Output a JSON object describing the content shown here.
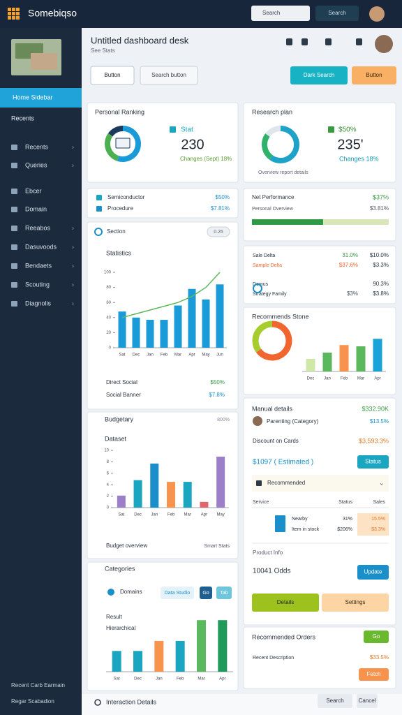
{
  "app": {
    "name": "Somebiqso",
    "search_placeholder": "Search",
    "search_button": "Search"
  },
  "sidebar": {
    "active": "Home Sidebar",
    "section": "Recents",
    "items": [
      "Recents",
      "Queries",
      "Ebcer",
      "Domain",
      "Reeabos",
      "Dasuvoods",
      "Bendaets",
      "Scouting",
      "Diagnolis"
    ],
    "footer": [
      "Recent Carb Earmain",
      "Regar Scabadion"
    ]
  },
  "header": {
    "title": "Untitled dashboard desk",
    "subtitle": "See Stats"
  },
  "toolbar": {
    "buttons": [
      "Button",
      "Search button",
      "Dark Search",
      "Button"
    ]
  },
  "ranking_card": {
    "title": "Personal Ranking",
    "stat_label": "Stat",
    "stat": "230",
    "change": "Changes (Sept) 18%",
    "donut": {
      "type": "pie",
      "values": [
        55,
        30,
        15
      ],
      "colors": [
        "#1a9bd7",
        "#4caf50",
        "#1b3a5c"
      ]
    }
  },
  "research_card": {
    "title": "Research plan",
    "stat_label": "$50%",
    "stat": "235'",
    "change": "Changes 18%",
    "footer": "Overview report details",
    "donut": {
      "type": "pie",
      "values": [
        60,
        25,
        15
      ],
      "colors": [
        "#1fa2c8",
        "#2fb36a",
        "#dfe6ec"
      ]
    }
  },
  "legend_card": {
    "rows": [
      [
        "Semiconductor",
        "$50%"
      ],
      [
        "Procedure",
        "$7.81%"
      ]
    ]
  },
  "section_row": {
    "label": "Section",
    "pill": "0.26"
  },
  "statistics": {
    "title": "Statistics",
    "chart": {
      "type": "bar",
      "categories": [
        "Sat",
        "Dec",
        "Jan",
        "Feb",
        "Mar",
        "Apr",
        "May",
        "Jun"
      ],
      "series": [
        {
          "name": "Bars",
          "color": "#1a9bd7",
          "values": [
            48,
            40,
            37,
            37,
            56,
            78,
            64,
            84
          ]
        },
        {
          "name": "Trend",
          "color": "#5cb85c",
          "values": [
            40,
            45,
            50,
            55,
            60,
            68,
            80,
            100
          ]
        }
      ],
      "ylim": [
        0,
        100
      ],
      "yticks": [
        0,
        20,
        40,
        60,
        80,
        100
      ]
    },
    "rows": [
      [
        "Direct Social",
        "$50%"
      ],
      [
        "Social Banner",
        "$7.8%"
      ]
    ]
  },
  "performance_card": {
    "rows": [
      [
        "Net Performance",
        "$37%"
      ],
      [
        "Personal Overview",
        "$3.81%"
      ]
    ],
    "progress": 52
  },
  "delta_card": {
    "rows": [
      [
        "Sale Delta",
        "31.0%",
        "$10.0%"
      ],
      [
        "Sample Delta",
        "$37.6%",
        "$3.3%"
      ],
      [
        "Domus",
        "",
        "90.3%"
      ],
      [
        "Strategy Family",
        "$3%",
        "$3.8%"
      ]
    ]
  },
  "recommends": {
    "title": "Recommends Stone",
    "donut": {
      "type": "pie",
      "values": [
        65,
        35
      ],
      "colors": [
        "#f0662e",
        "#a6cc2e"
      ]
    },
    "chart": {
      "type": "bar",
      "categories": [
        "Dec",
        "Jan",
        "Feb",
        "Mar",
        "Apr"
      ],
      "values": [
        20,
        30,
        42,
        40,
        52
      ],
      "colors": [
        "#cfe8a8",
        "#5cb85c",
        "#f7934c",
        "#5cb85c",
        "#1aa3d9"
      ],
      "ylim": [
        0,
        60
      ]
    }
  },
  "budget_card": {
    "title": "Budgetary",
    "badge": "800%",
    "chart_title": "Dataset",
    "chart": {
      "type": "bar",
      "categories": [
        "Sat",
        "Dec",
        "Jan",
        "Feb",
        "Mar",
        "Apr",
        "May"
      ],
      "values": [
        2.1,
        4.8,
        7.7,
        4.5,
        4.5,
        1.0,
        8.9
      ],
      "colors": [
        "#9b7fc9",
        "#1aa6c0",
        "#1a8fc9",
        "#f7934c",
        "#1aa6c0",
        "#e0666a",
        "#9b7fc9"
      ],
      "ylim": [
        0,
        10
      ],
      "yticks": [
        0,
        2,
        4,
        6,
        8,
        10
      ]
    },
    "footer": "Budget overview",
    "footer_right": "Smart Stats"
  },
  "categories_card": {
    "title": "Categories",
    "row": "Domains",
    "buttons": [
      "Data Studio",
      "Go",
      "Tab"
    ],
    "label": "Result",
    "sublabel": "Hierarchical",
    "chart": {
      "type": "bar",
      "categories": [
        "Sat",
        "Dec",
        "Jan",
        "Feb",
        "Mar",
        "Apr"
      ],
      "values": [
        29,
        29,
        43,
        43,
        72,
        72
      ],
      "colors": [
        "#1aa6c0",
        "#1aa6c0",
        "#f7934c",
        "#1aa6c0",
        "#5cb85c",
        "#1f9a5a"
      ],
      "ylim": [
        0,
        80
      ]
    }
  },
  "manual_card": {
    "title": "Manual details",
    "title_value": "$332.90K",
    "person": "Parenting (Category)",
    "person_value": "$13.5%",
    "discount": "Discount on Cards",
    "discount_value": "$3,593.3%",
    "estimate": "$1097 ( Estimated )",
    "status_button": "Status",
    "collapsible": "Recommended",
    "table": {
      "header": [
        "Service",
        "Status",
        "Sales"
      ],
      "rows": [
        [
          "Nearby",
          "31%",
          "15.5%"
        ],
        [
          "Item in stock",
          "$206%",
          "$3.3%"
        ]
      ]
    },
    "product": "Product Info",
    "odds": "10041 Odds",
    "update_button": "Update",
    "buttons": [
      "Details",
      "Settings"
    ]
  },
  "orders_card": {
    "title": "Recommended Orders",
    "go_button": "Go",
    "row": "Recent Description",
    "row_value": "$33.5%",
    "fetch_button": "Fetch"
  },
  "bottom_bar": {
    "title": "Interaction Details",
    "buttons": [
      "Search",
      "Cancel"
    ]
  }
}
